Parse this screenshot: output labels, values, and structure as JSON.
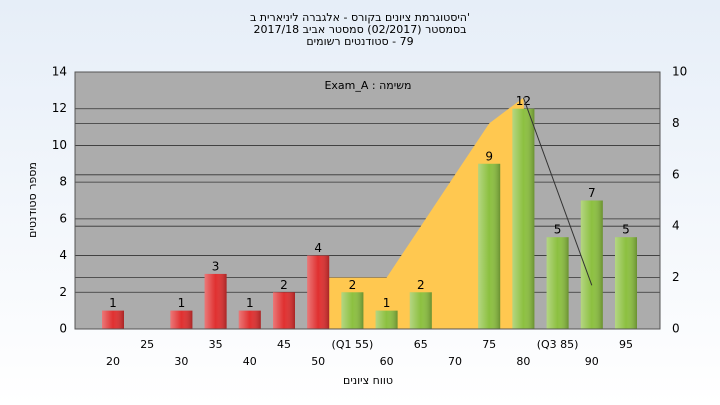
{
  "chart_data": {
    "type": "bar",
    "title": [
      "'היסטוגרמת ציונים בקורס - אלגברה ליניארית ב",
      "בסמסטר  (02/2017)  סמסטר אביב 2017/18",
      "79 - סטודנטים רשומים"
    ],
    "annotation": "משימה : Exam_A",
    "x_label": "טווח ציונים",
    "y_label": "מספר סטודנטים",
    "categories": [
      "20",
      "25",
      "30",
      "35",
      "40",
      "45",
      "50",
      "(Q1 55)",
      "60",
      "65",
      "70",
      "75",
      "80",
      "(Q3 85)",
      "90",
      "95"
    ],
    "values": [
      1,
      null,
      1,
      3,
      1,
      2,
      4,
      2,
      1,
      2,
      null,
      9,
      12,
      5,
      7,
      5
    ],
    "colors": [
      "#e03030",
      "#e03030",
      "#e03030",
      "#e03030",
      "#e03030",
      "#e03030",
      "#e03030",
      "#8cc040",
      "#8cc040",
      "#8cc040",
      "#8cc040",
      "#8cc040",
      "#8cc040",
      "#8cc040",
      "#8cc040",
      "#8cc040"
    ],
    "area": {
      "color": "#ffc850",
      "axis": "y2",
      "x": [
        6,
        7,
        8,
        9,
        10,
        11,
        12,
        12.3
      ],
      "values": [
        2,
        2,
        2,
        4,
        6,
        8,
        9,
        0
      ]
    },
    "trend": {
      "color": "#333333",
      "axis": "y2",
      "x": [
        12,
        14
      ],
      "values": [
        9,
        1.7
      ]
    },
    "ylim": [
      0,
      14
    ],
    "yticks": [
      0,
      2,
      4,
      6,
      8,
      10,
      12,
      14
    ],
    "y2lim": [
      0,
      10
    ],
    "y2ticks": [
      0,
      2,
      4,
      6,
      8,
      10
    ],
    "grid": true
  }
}
